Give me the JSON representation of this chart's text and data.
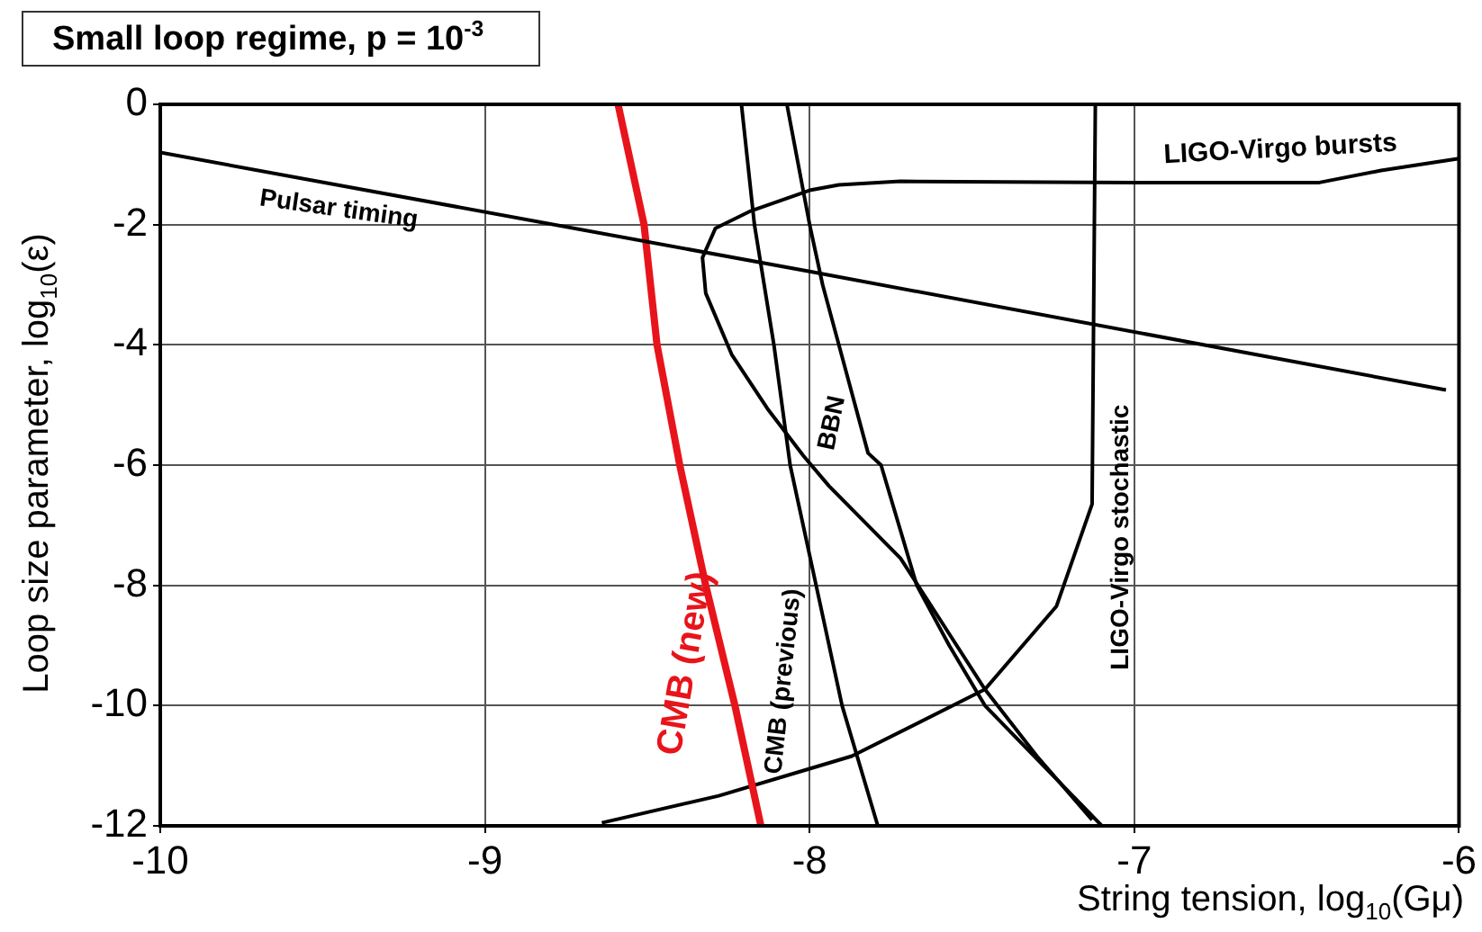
{
  "chart_data": {
    "type": "line",
    "title": "Small loop regime, p = 10$^{-3}$",
    "xlabel": "String tension, log$_{10}$(Gμ)",
    "ylabel": "Loop size parameter, log$_{10}$(ε)",
    "xlim": [
      -10,
      -6
    ],
    "xticks": [
      -10,
      -9,
      -8,
      -7,
      -6
    ],
    "ylim": [
      -12,
      0
    ],
    "yticks": [
      -12,
      -10,
      -8,
      -6,
      -4,
      -2,
      0
    ],
    "grid": true,
    "legend": false,
    "marker": "none",
    "line_style": "solid",
    "series": [
      {
        "name": "Pulsar timing",
        "color": "#000000",
        "x": [
          -10,
          -8,
          -6.04
        ],
        "values": [
          -0.8,
          -2.78,
          -4.75
        ]
      },
      {
        "name": "LIGO-Virgo bursts",
        "color": "#000000",
        "x": [
          -6.0,
          -6.24,
          -6.43,
          -6.99,
          -7.72,
          -7.91,
          -8.0,
          -8.18,
          -8.29,
          -8.33,
          -8.32,
          -8.24,
          -8.13,
          -8.02,
          -7.94,
          -7.72,
          -7.46,
          -7.3,
          -7.13
        ],
        "values": [
          -0.9,
          -1.1,
          -1.3,
          -1.3,
          -1.28,
          -1.34,
          -1.43,
          -1.77,
          -2.06,
          -2.55,
          -3.14,
          -4.16,
          -5.06,
          -5.84,
          -6.35,
          -7.55,
          -9.73,
          -10.84,
          -11.9
        ]
      },
      {
        "name": "BBN",
        "color": "#000000",
        "x": [
          -8.07,
          -8.0,
          -7.96,
          -7.91,
          -7.82,
          -7.78,
          -7.67,
          -7.57,
          -7.46,
          -7.28,
          -7.1
        ],
        "values": [
          0,
          -2,
          -3,
          -4,
          -5.8,
          -6,
          -8,
          -9,
          -10,
          -11,
          -12
        ]
      },
      {
        "name": "CMB (new)",
        "color": "#e8141b",
        "x": [
          -8.59,
          -8.51,
          -8.47,
          -8.4,
          -8.32,
          -8.23,
          -8.15
        ],
        "values": [
          0,
          -2,
          -4,
          -6,
          -8,
          -10,
          -12
        ]
      },
      {
        "name": "CMB (previous)",
        "color": "#000000",
        "x": [
          -8.21,
          -8.17,
          -8.11,
          -8.06,
          -7.98,
          -7.9,
          -7.79
        ],
        "values": [
          0,
          -2,
          -4,
          -6,
          -8,
          -10,
          -12
        ]
      },
      {
        "name": "LIGO-Virgo stochastic",
        "color": "#000000",
        "x": [
          -8.64,
          -8.28,
          -8.0,
          -7.87,
          -7.46,
          -7.24,
          -7.13,
          -7.12
        ],
        "values": [
          -11.95,
          -11.5,
          -11.05,
          -10.84,
          -9.73,
          -8.35,
          -6.65,
          0
        ]
      }
    ]
  }
}
